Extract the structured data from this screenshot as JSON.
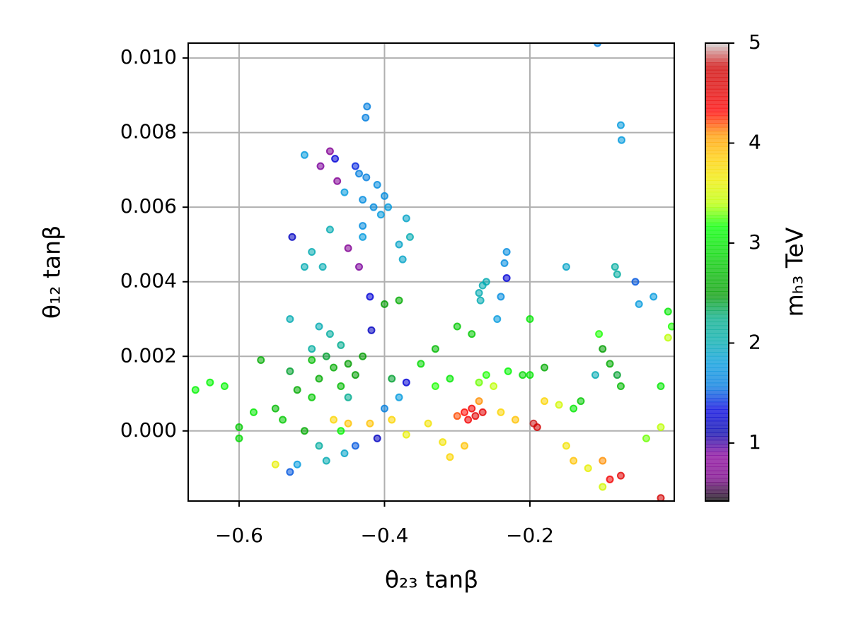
{
  "chart_data": {
    "type": "scatter",
    "xlabel": "θ₂₃ tanβ",
    "ylabel": "θ₁₂ tanβ",
    "colorbar_label": "mₕ₃ TeV",
    "colormap": "nipy_spectral",
    "grid": true,
    "xlim": [
      -0.67,
      -0.0015
    ],
    "ylim": [
      -0.00188,
      0.0104
    ],
    "clim": [
      0.42,
      5
    ],
    "xticks": [
      {
        "value": -0.6,
        "label": "−0.6"
      },
      {
        "value": -0.4,
        "label": "−0.4"
      },
      {
        "value": -0.2,
        "label": "−0.2"
      }
    ],
    "yticks": [
      {
        "value": 0,
        "label": "0.000"
      },
      0.002,
      0.004,
      0.006,
      0.008,
      {
        "value": 0.01,
        "label": "0.010"
      }
    ],
    "cticks": [
      1,
      2,
      3,
      4,
      5
    ],
    "x": [
      -0.107,
      -0.075,
      -0.074,
      -0.475,
      -0.465,
      -0.45,
      -0.435,
      -0.488,
      -0.527,
      -0.42,
      -0.418,
      -0.468,
      -0.44,
      -0.424,
      -0.426,
      -0.435,
      -0.425,
      -0.41,
      -0.4,
      -0.43,
      -0.415,
      -0.405,
      -0.395,
      -0.43,
      -0.43,
      -0.51,
      -0.455,
      -0.5,
      -0.51,
      -0.485,
      -0.475,
      -0.38,
      -0.375,
      -0.37,
      -0.365,
      -0.265,
      -0.27,
      -0.26,
      -0.268,
      -0.232,
      -0.235,
      -0.24,
      -0.232,
      -0.245,
      -0.15,
      -0.083,
      -0.08,
      -0.055,
      -0.05,
      -0.03,
      -0.01,
      -0.005,
      -0.01,
      -0.2,
      -0.38,
      -0.4,
      -0.53,
      -0.49,
      -0.475,
      -0.5,
      -0.46,
      -0.48,
      -0.47,
      -0.45,
      -0.49,
      -0.46,
      -0.5,
      -0.52,
      -0.44,
      -0.43,
      -0.55,
      -0.54,
      -0.58,
      -0.6,
      -0.62,
      -0.64,
      -0.66,
      -0.6,
      -0.51,
      -0.49,
      -0.48,
      -0.455,
      -0.44,
      -0.52,
      -0.55,
      -0.47,
      -0.45,
      -0.42,
      -0.39,
      -0.41,
      -0.37,
      -0.34,
      -0.32,
      -0.3,
      -0.29,
      -0.28,
      -0.275,
      -0.265,
      -0.285,
      -0.27,
      -0.29,
      -0.31,
      -0.25,
      -0.24,
      -0.22,
      -0.195,
      -0.19,
      -0.18,
      -0.16,
      -0.14,
      -0.13,
      -0.15,
      -0.14,
      -0.12,
      -0.1,
      -0.09,
      -0.075,
      -0.1,
      -0.02,
      -0.04,
      -0.02,
      -0.02,
      -0.105,
      -0.1,
      -0.09,
      -0.08,
      -0.075,
      -0.11,
      -0.18,
      -0.2,
      -0.3,
      -0.28,
      -0.33,
      -0.35,
      -0.39,
      -0.38,
      -0.4,
      -0.37,
      -0.33,
      -0.31,
      -0.27,
      -0.26,
      -0.23,
      -0.21,
      -0.53,
      -0.46,
      -0.57,
      -0.53,
      -0.5,
      -0.45
    ],
    "values": [
      0.0104,
      0.0082,
      0.0078,
      0.0075,
      0.0067,
      0.0049,
      0.0044,
      0.0071,
      0.0052,
      0.0036,
      0.0027,
      0.0073,
      0.0071,
      0.0087,
      0.0084,
      0.0069,
      0.0068,
      0.0066,
      0.0063,
      0.0062,
      0.006,
      0.0058,
      0.006,
      0.0055,
      0.0052,
      0.0074,
      0.0064,
      0.0048,
      0.0044,
      0.0044,
      0.0054,
      0.005,
      0.0046,
      0.0057,
      0.0052,
      0.0039,
      0.0037,
      0.004,
      0.0035,
      0.0048,
      0.0045,
      0.0036,
      0.0041,
      0.003,
      0.0044,
      0.0044,
      0.0042,
      0.004,
      0.0034,
      0.0036,
      0.0032,
      0.0028,
      0.0025,
      0.003,
      0.0035,
      0.0034,
      0.003,
      0.0028,
      0.0026,
      0.0022,
      0.0023,
      0.002,
      0.0017,
      0.0018,
      0.0014,
      0.0012,
      0.0009,
      0.0011,
      0.0015,
      0.002,
      0.0006,
      0.0003,
      0.0005,
      0.0001,
      0.0012,
      0.0013,
      0.0011,
      -0.0002,
      0,
      -0.0004,
      -0.0008,
      -0.0006,
      -0.0004,
      -0.0009,
      -0.0009,
      0.0003,
      0.0002,
      0.0002,
      0.0003,
      -0.0002,
      -0.0001,
      0.0002,
      -0.0003,
      0.0004,
      0.0005,
      0.0006,
      0.0004,
      0.0005,
      0.0003,
      0.0008,
      -0.0004,
      -0.0007,
      0.0012,
      0.0005,
      0.0003,
      0.0002,
      0.0001,
      0.0008,
      0.0007,
      0.0006,
      0.0008,
      -0.0004,
      -0.0008,
      -0.001,
      -0.0008,
      -0.0013,
      -0.0012,
      -0.0015,
      -0.0018,
      -0.0002,
      0.0012,
      0.0001,
      0.0026,
      0.0022,
      0.0018,
      0.0015,
      0.0012,
      0.0015,
      0.0017,
      0.0015,
      0.0028,
      0.0026,
      0.0022,
      0.0018,
      0.0014,
      0.0009,
      0.0006,
      0.0013,
      0.0012,
      0.0014,
      0.0013,
      0.0015,
      0.0016,
      0.0015,
      -0.0011,
      0,
      0.0019,
      0.0016,
      0.0019,
      0.0009
    ],
    "color_values": [
      1.6,
      1.8,
      1.8,
      0.8,
      0.8,
      0.8,
      0.9,
      0.9,
      1.2,
      1.3,
      1.2,
      1.3,
      1.4,
      1.6,
      1.6,
      1.6,
      1.6,
      1.7,
      1.7,
      1.7,
      1.7,
      1.8,
      1.8,
      1.7,
      1.8,
      1.8,
      1.8,
      2.0,
      2.0,
      2.0,
      2.0,
      1.9,
      1.9,
      1.9,
      2.0,
      2.0,
      2.0,
      2.0,
      2.0,
      1.7,
      1.7,
      1.7,
      1.3,
      1.8,
      1.9,
      2.1,
      2.1,
      1.5,
      1.8,
      1.8,
      3.0,
      3.2,
      3.4,
      3.0,
      2.6,
      2.5,
      2.0,
      2.0,
      2.1,
      2.1,
      2.2,
      2.4,
      2.6,
      2.5,
      2.6,
      2.7,
      2.8,
      2.6,
      2.5,
      2.5,
      2.7,
      2.8,
      3.0,
      2.8,
      3.1,
      3.1,
      3.1,
      2.9,
      2.6,
      2.1,
      2.0,
      1.9,
      1.5,
      1.8,
      3.6,
      3.8,
      3.9,
      3.9,
      3.8,
      1.2,
      3.6,
      3.7,
      3.7,
      4.2,
      4.3,
      4.4,
      4.5,
      4.5,
      4.4,
      4.1,
      3.9,
      3.8,
      3.4,
      3.8,
      3.9,
      4.8,
      4.7,
      3.8,
      3.5,
      3.0,
      2.8,
      3.7,
      3.9,
      3.6,
      4.1,
      4.4,
      4.5,
      3.5,
      4.7,
      3.3,
      3.0,
      3.4,
      3.2,
      2.5,
      2.6,
      2.4,
      2.7,
      2.0,
      2.6,
      3.0,
      2.8,
      2.8,
      2.7,
      2.9,
      2.4,
      1.8,
      1.6,
      1.3,
      3.2,
      3.0,
      3.3,
      3.2,
      3.1,
      2.9,
      1.5,
      3.1,
      2.6,
      2.4,
      2.7,
      2.2
    ]
  }
}
